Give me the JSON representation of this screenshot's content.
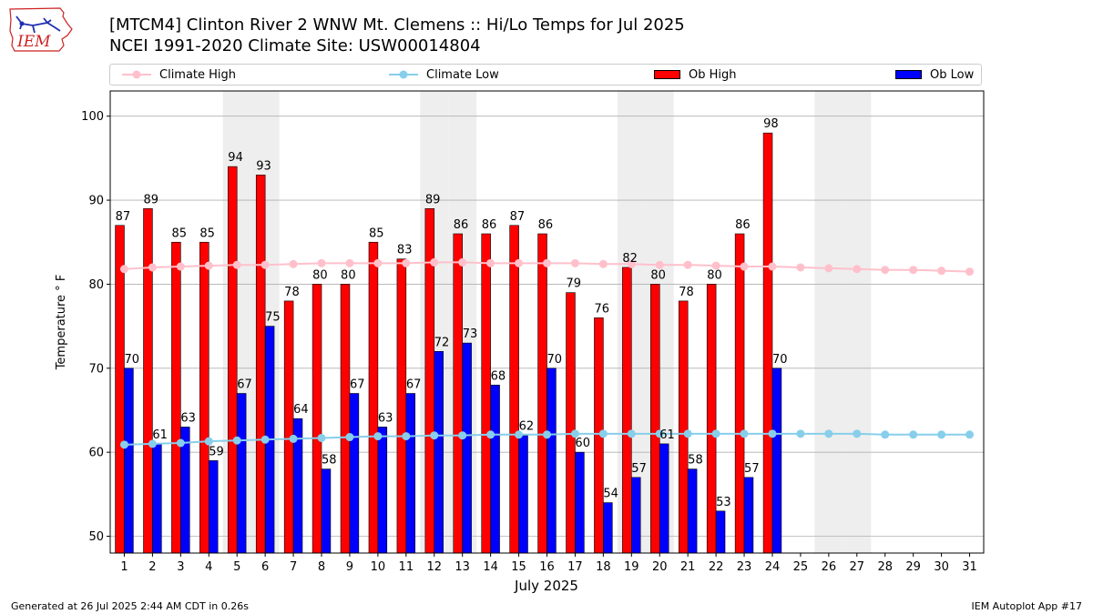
{
  "title_line1": "[MTCM4] Clinton River 2 WNW Mt. Clemens :: Hi/Lo Temps for Jul 2025",
  "title_line2": "NCEI 1991-2020 Climate Site: USW00014804",
  "logo_text": "IEM",
  "footer_left": "Generated at 26 Jul 2025 2:44 AM CDT in 0.26s",
  "footer_right": "IEM Autoplot App #17",
  "colors": {
    "ob_high": "#ff0000",
    "ob_low": "#0000ff",
    "climate_high": "#ffc0cb",
    "climate_low": "#87ceeb",
    "weekend_shade": "#eeeeee",
    "grid": "#b0b0b0",
    "logo": "#cc2222"
  },
  "chart_data": {
    "type": "bar",
    "xlabel": "July 2025",
    "ylabel": "Temperature ° F",
    "ylim": [
      48,
      103
    ],
    "xlim": [
      0.5,
      31.5
    ],
    "yticks": [
      50,
      60,
      70,
      80,
      90,
      100
    ],
    "xticks": [
      1,
      2,
      3,
      4,
      5,
      6,
      7,
      8,
      9,
      10,
      11,
      12,
      13,
      14,
      15,
      16,
      17,
      18,
      19,
      20,
      21,
      22,
      23,
      24,
      25,
      26,
      27,
      28,
      29,
      30,
      31
    ],
    "grid": "horizontal",
    "legend_position": "top",
    "weekend_days": [
      5,
      6,
      12,
      13,
      19,
      20,
      26,
      27
    ],
    "series": [
      {
        "name": "Climate High",
        "kind": "line",
        "x": [
          1,
          2,
          3,
          4,
          5,
          6,
          7,
          8,
          9,
          10,
          11,
          12,
          13,
          14,
          15,
          16,
          17,
          18,
          19,
          20,
          21,
          22,
          23,
          24,
          25,
          26,
          27,
          28,
          29,
          30,
          31
        ],
        "values": [
          81.8,
          82.0,
          82.1,
          82.2,
          82.3,
          82.3,
          82.4,
          82.5,
          82.5,
          82.5,
          82.5,
          82.6,
          82.6,
          82.5,
          82.5,
          82.5,
          82.5,
          82.4,
          82.4,
          82.3,
          82.3,
          82.2,
          82.1,
          82.1,
          82.0,
          81.9,
          81.8,
          81.7,
          81.7,
          81.6,
          81.5
        ]
      },
      {
        "name": "Climate Low",
        "kind": "line",
        "x": [
          1,
          2,
          3,
          4,
          5,
          6,
          7,
          8,
          9,
          10,
          11,
          12,
          13,
          14,
          15,
          16,
          17,
          18,
          19,
          20,
          21,
          22,
          23,
          24,
          25,
          26,
          27,
          28,
          29,
          30,
          31
        ],
        "values": [
          60.9,
          61.0,
          61.1,
          61.3,
          61.4,
          61.5,
          61.6,
          61.7,
          61.8,
          61.9,
          61.9,
          62.0,
          62.0,
          62.1,
          62.1,
          62.1,
          62.2,
          62.2,
          62.2,
          62.2,
          62.2,
          62.2,
          62.2,
          62.2,
          62.2,
          62.2,
          62.2,
          62.1,
          62.1,
          62.1,
          62.1
        ]
      },
      {
        "name": "Ob High",
        "kind": "bar",
        "x": [
          1,
          2,
          3,
          4,
          5,
          6,
          7,
          8,
          9,
          10,
          11,
          12,
          13,
          14,
          15,
          16,
          17,
          18,
          19,
          20,
          21,
          22,
          23,
          24
        ],
        "values": [
          87,
          89,
          85,
          85,
          94,
          93,
          78,
          80,
          80,
          85,
          83,
          89,
          86,
          86,
          87,
          86,
          79,
          76,
          82,
          80,
          78,
          80,
          86,
          98
        ]
      },
      {
        "name": "Ob Low",
        "kind": "bar",
        "x": [
          1,
          2,
          3,
          4,
          5,
          6,
          7,
          8,
          9,
          10,
          11,
          12,
          13,
          14,
          15,
          16,
          17,
          18,
          19,
          20,
          21,
          22,
          23,
          24
        ],
        "values": [
          70,
          61,
          63,
          59,
          67,
          75,
          64,
          58,
          67,
          63,
          67,
          72,
          73,
          68,
          62,
          70,
          60,
          54,
          57,
          61,
          58,
          53,
          57,
          70
        ]
      }
    ]
  }
}
